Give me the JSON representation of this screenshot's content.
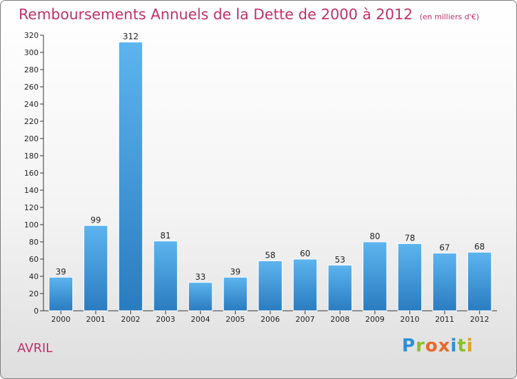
{
  "header": {
    "title": "Remboursements Annuels de la Dette de 2000 à 2012",
    "subtitle": "(en milliers d'€)"
  },
  "footer": {
    "commune": "AVRIL",
    "logo_text": "Proxiti"
  },
  "colors": {
    "title": "#c0306a",
    "bar_top": "#5db4ee",
    "bar_bottom": "#2a7cc0",
    "logo_letters": [
      "#2c8fd6",
      "#8bbf2a",
      "#e8682a",
      "#e8682a",
      "#2c8fd6",
      "#8bbf2a",
      "#e0a21c"
    ]
  },
  "chart_data": {
    "type": "bar",
    "categories": [
      "2000",
      "2001",
      "2002",
      "2003",
      "2004",
      "2005",
      "2006",
      "2007",
      "2008",
      "2009",
      "2010",
      "2011",
      "2012"
    ],
    "values": [
      39,
      99,
      312,
      81,
      33,
      39,
      58,
      60,
      53,
      80,
      78,
      67,
      68
    ],
    "ylim": [
      0,
      320
    ],
    "yticks": [
      0,
      20,
      40,
      60,
      80,
      100,
      120,
      140,
      160,
      180,
      200,
      220,
      240,
      260,
      280,
      300,
      320
    ],
    "grid": false,
    "data_labels": true
  }
}
